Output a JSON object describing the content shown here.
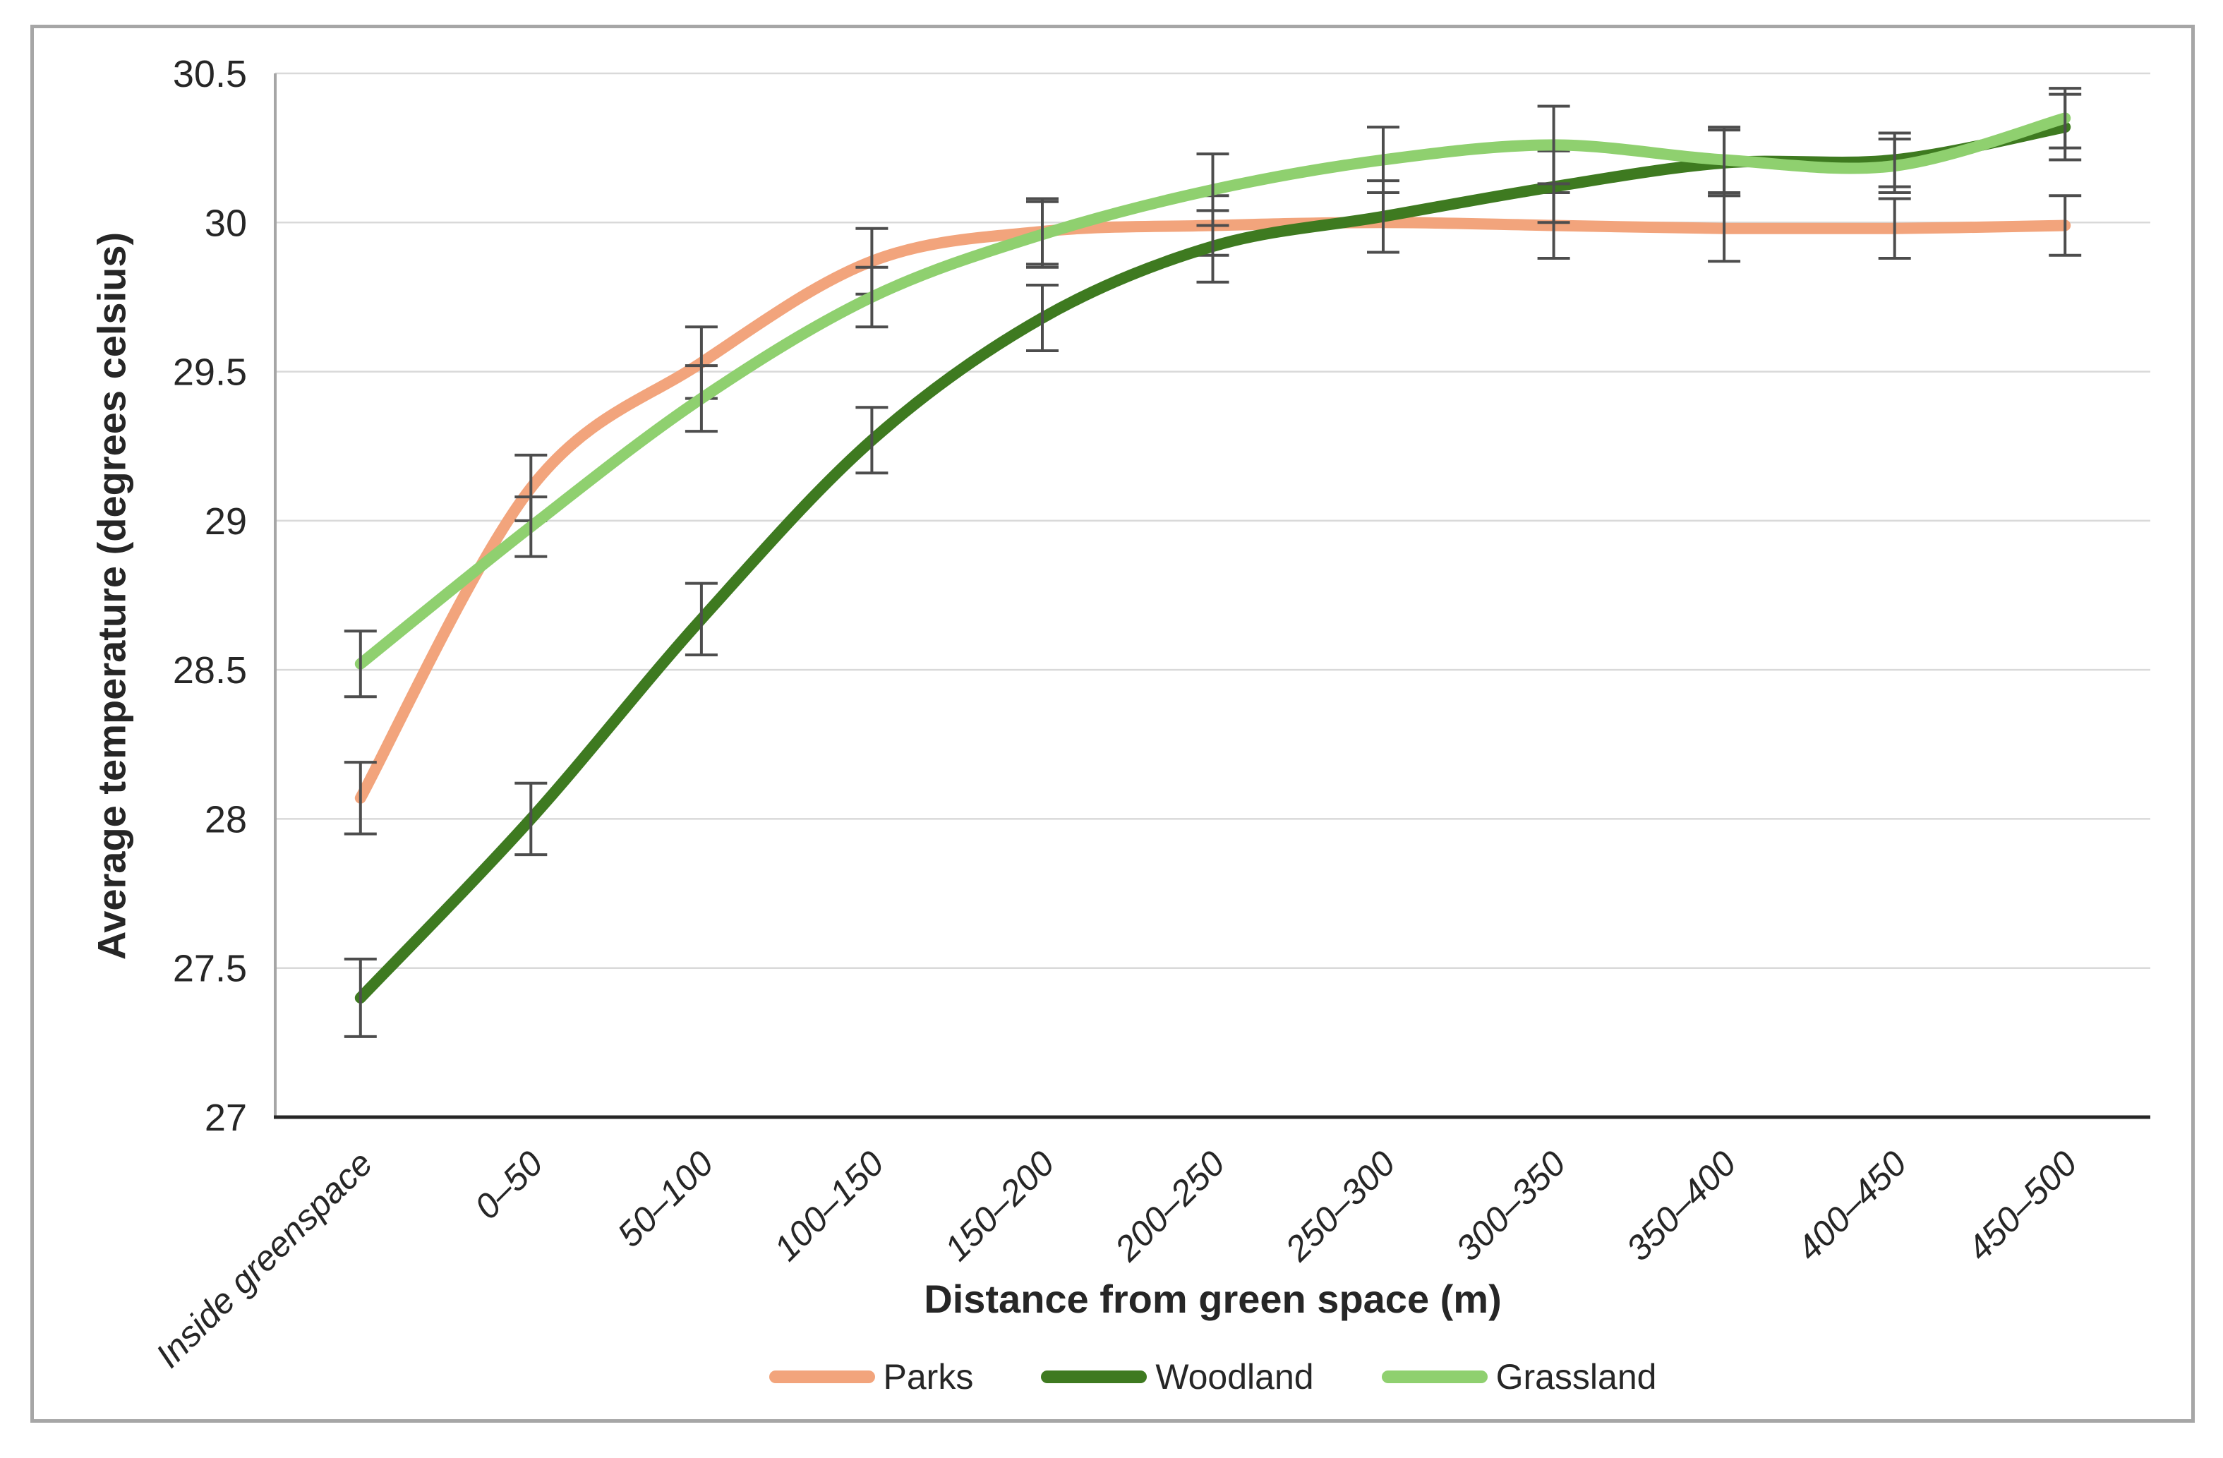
{
  "chart_data": {
    "type": "line",
    "title": "",
    "xlabel": "Distance from green space (m)",
    "ylabel": "Average temperature (degrees celsius)",
    "categories": [
      "Inside greenspace",
      "0–50",
      "50–100",
      "100–150",
      "150–200",
      "200–250",
      "250–300",
      "300–350",
      "350–400",
      "400–450",
      "450–500"
    ],
    "ylim": [
      27,
      30.5
    ],
    "yticks": [
      30.5,
      30,
      29.5,
      29,
      28.5,
      28,
      27.5,
      27
    ],
    "grid": "horizontal",
    "legend_position": "bottom",
    "line_style": "smoothed, with error bars",
    "series": [
      {
        "name": "Parks",
        "color": "#F2A47C",
        "values": [
          28.07,
          29.11,
          29.53,
          29.87,
          29.97,
          29.99,
          30.0,
          29.99,
          29.98,
          29.98,
          29.99
        ],
        "errors": [
          0.12,
          0.11,
          0.12,
          0.11,
          0.11,
          0.1,
          0.1,
          0.11,
          0.11,
          0.1,
          0.1
        ]
      },
      {
        "name": "Woodland",
        "color": "#3E7A20",
        "values": [
          27.4,
          28.0,
          28.67,
          29.27,
          29.68,
          29.92,
          30.02,
          30.12,
          30.2,
          30.21,
          30.32
        ],
        "errors": [
          0.13,
          0.12,
          0.12,
          0.11,
          0.11,
          0.12,
          0.12,
          0.12,
          0.11,
          0.09,
          0.11
        ]
      },
      {
        "name": "Grassland",
        "color": "#8FD06F",
        "values": [
          28.52,
          28.98,
          29.41,
          29.75,
          29.96,
          30.11,
          30.21,
          30.26,
          30.21,
          30.19,
          30.35
        ],
        "errors": [
          0.11,
          0.1,
          0.11,
          0.1,
          0.11,
          0.12,
          0.11,
          0.13,
          0.11,
          0.09,
          0.1
        ]
      }
    ]
  },
  "styles": {
    "background": "#FFFFFF",
    "frame_color": "#A6A6A6",
    "gridline_color": "#D9D9D9",
    "y_axis_color": "#A6A6A6",
    "x_axis_color": "#262626",
    "error_bar_color": "#4D4D4D",
    "text_color": "#262626"
  }
}
